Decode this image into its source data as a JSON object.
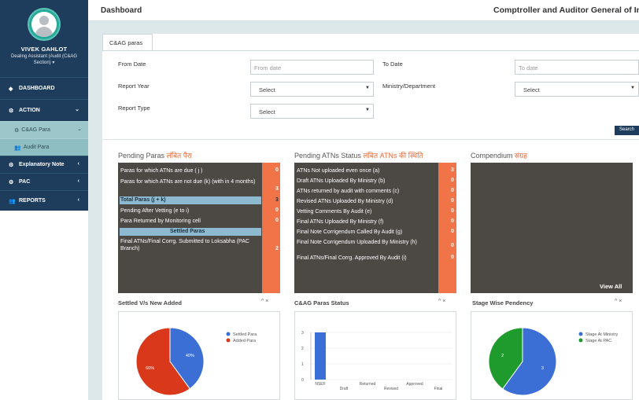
{
  "sidebar": {
    "user_name": "VIVEK GAHLOT",
    "user_role": "Dealing Assistant (Audit (C&AG Section) ▾",
    "nav": {
      "dashboard": "DASHBOARD",
      "action": "ACTION",
      "cag_para": "C&AG Para",
      "audit_para": "Audit Para",
      "explanatory_note": "Explanatory Note",
      "pac": "PAC",
      "reports": "REPORTS"
    }
  },
  "header": {
    "title": "Dashboard",
    "org": "Comptroller and Auditor General of India"
  },
  "tab": "C&AG paras",
  "filters": {
    "from_date_label": "From Date",
    "from_date_placeholder": "From date",
    "to_date_label": "To Date",
    "to_date_placeholder": "To date",
    "report_year_label": "Report Year",
    "report_year_value": "Select",
    "ministry_label": "Ministry/Department",
    "ministry_value": "Select",
    "report_type_label": "Report Type",
    "report_type_value": "Select",
    "search_label": "Search"
  },
  "pending_paras": {
    "title": "Pending Paras",
    "title_hi": "लंबित पैरा",
    "rows": [
      {
        "label": "Paras for which ATNs are due ( j )",
        "value": "0"
      },
      {
        "label": "Paras for which ATNs are not due (k) (with in 4 months)",
        "value": "3"
      },
      {
        "label": "Total Paras (j + k)",
        "value": "3"
      },
      {
        "label": "Pending After Vetting (e to i)",
        "value": "0"
      },
      {
        "label": "Para Returned by Monitoring cell",
        "value": "0"
      }
    ],
    "settled_header": "Settled Paras",
    "settled_rows": [
      {
        "label": "Final ATNs/Final Corrg. Submitted to Loksabha (PAC Branch)",
        "value": "2"
      }
    ]
  },
  "pending_atns": {
    "title": "Pending ATNs Status",
    "title_hi": "लंबित ATNs की स्थिति",
    "rows": [
      {
        "label": "ATNs Not uploaded even once (a)",
        "value": "3"
      },
      {
        "label": "Draft ATNs Uploaded By Ministry (b)",
        "value": "0"
      },
      {
        "label": "ATNs returned by audit with comments (c)",
        "value": "0"
      },
      {
        "label": "Revised ATNs Uploaded By Ministry (d)",
        "value": "0"
      },
      {
        "label": "Vetting Comments By Audit (e)",
        "value": "0"
      },
      {
        "label": "Final ATNs Uploaded By Ministry (f)",
        "value": "0"
      },
      {
        "label": "Final Note Corrigendum Called By Audit (g)",
        "value": "0"
      },
      {
        "label": "Final Note Corrigendum Uploaded By Ministry (h)",
        "value": "0"
      },
      {
        "label": "Final ATNs/Final Corrg. Approved By Audit (i)",
        "value": "0"
      }
    ]
  },
  "compendium": {
    "title": "Compendium",
    "title_hi": "संग्रह",
    "view_all": "View All"
  },
  "charts": {
    "settled": {
      "title": "Settled V/s New Added",
      "controls": "^  ×",
      "legend": [
        "Settled Para",
        "Added Para"
      ],
      "slice_labels": [
        "40%",
        "60%"
      ],
      "colors": [
        "#3b6fd6",
        "#d9391a"
      ]
    },
    "status": {
      "title": "C&AG Paras Status",
      "controls": "^  ×",
      "y_ticks": [
        "3",
        "2",
        "1",
        "0"
      ],
      "x_labels": [
        "NSEF",
        "Draft",
        "Returned",
        "Revised",
        "Approved",
        "Final"
      ],
      "color": "#3b6fd6"
    },
    "stage": {
      "title": "Stage Wise Pendency",
      "controls": "^  ×",
      "legend": [
        "Stage At Ministry",
        "Stage At PAC"
      ],
      "slice_labels": [
        "3",
        "2"
      ],
      "colors": [
        "#3b6fd6",
        "#1f9a2c"
      ]
    }
  },
  "chart_data": [
    {
      "type": "pie",
      "title": "Settled V/s New Added",
      "categories": [
        "Settled Para",
        "Added Para"
      ],
      "values": [
        40,
        60
      ]
    },
    {
      "type": "bar",
      "title": "C&AG Paras Status",
      "categories": [
        "NSEF",
        "Draft",
        "Returned",
        "Revised",
        "Approved",
        "Final"
      ],
      "values": [
        3,
        0,
        0,
        0,
        0,
        0
      ],
      "ylim": [
        0,
        3
      ],
      "grid": true
    },
    {
      "type": "pie",
      "title": "Stage Wise Pendency",
      "categories": [
        "Stage At Ministry",
        "Stage At PAC"
      ],
      "values": [
        3,
        2
      ]
    }
  ]
}
